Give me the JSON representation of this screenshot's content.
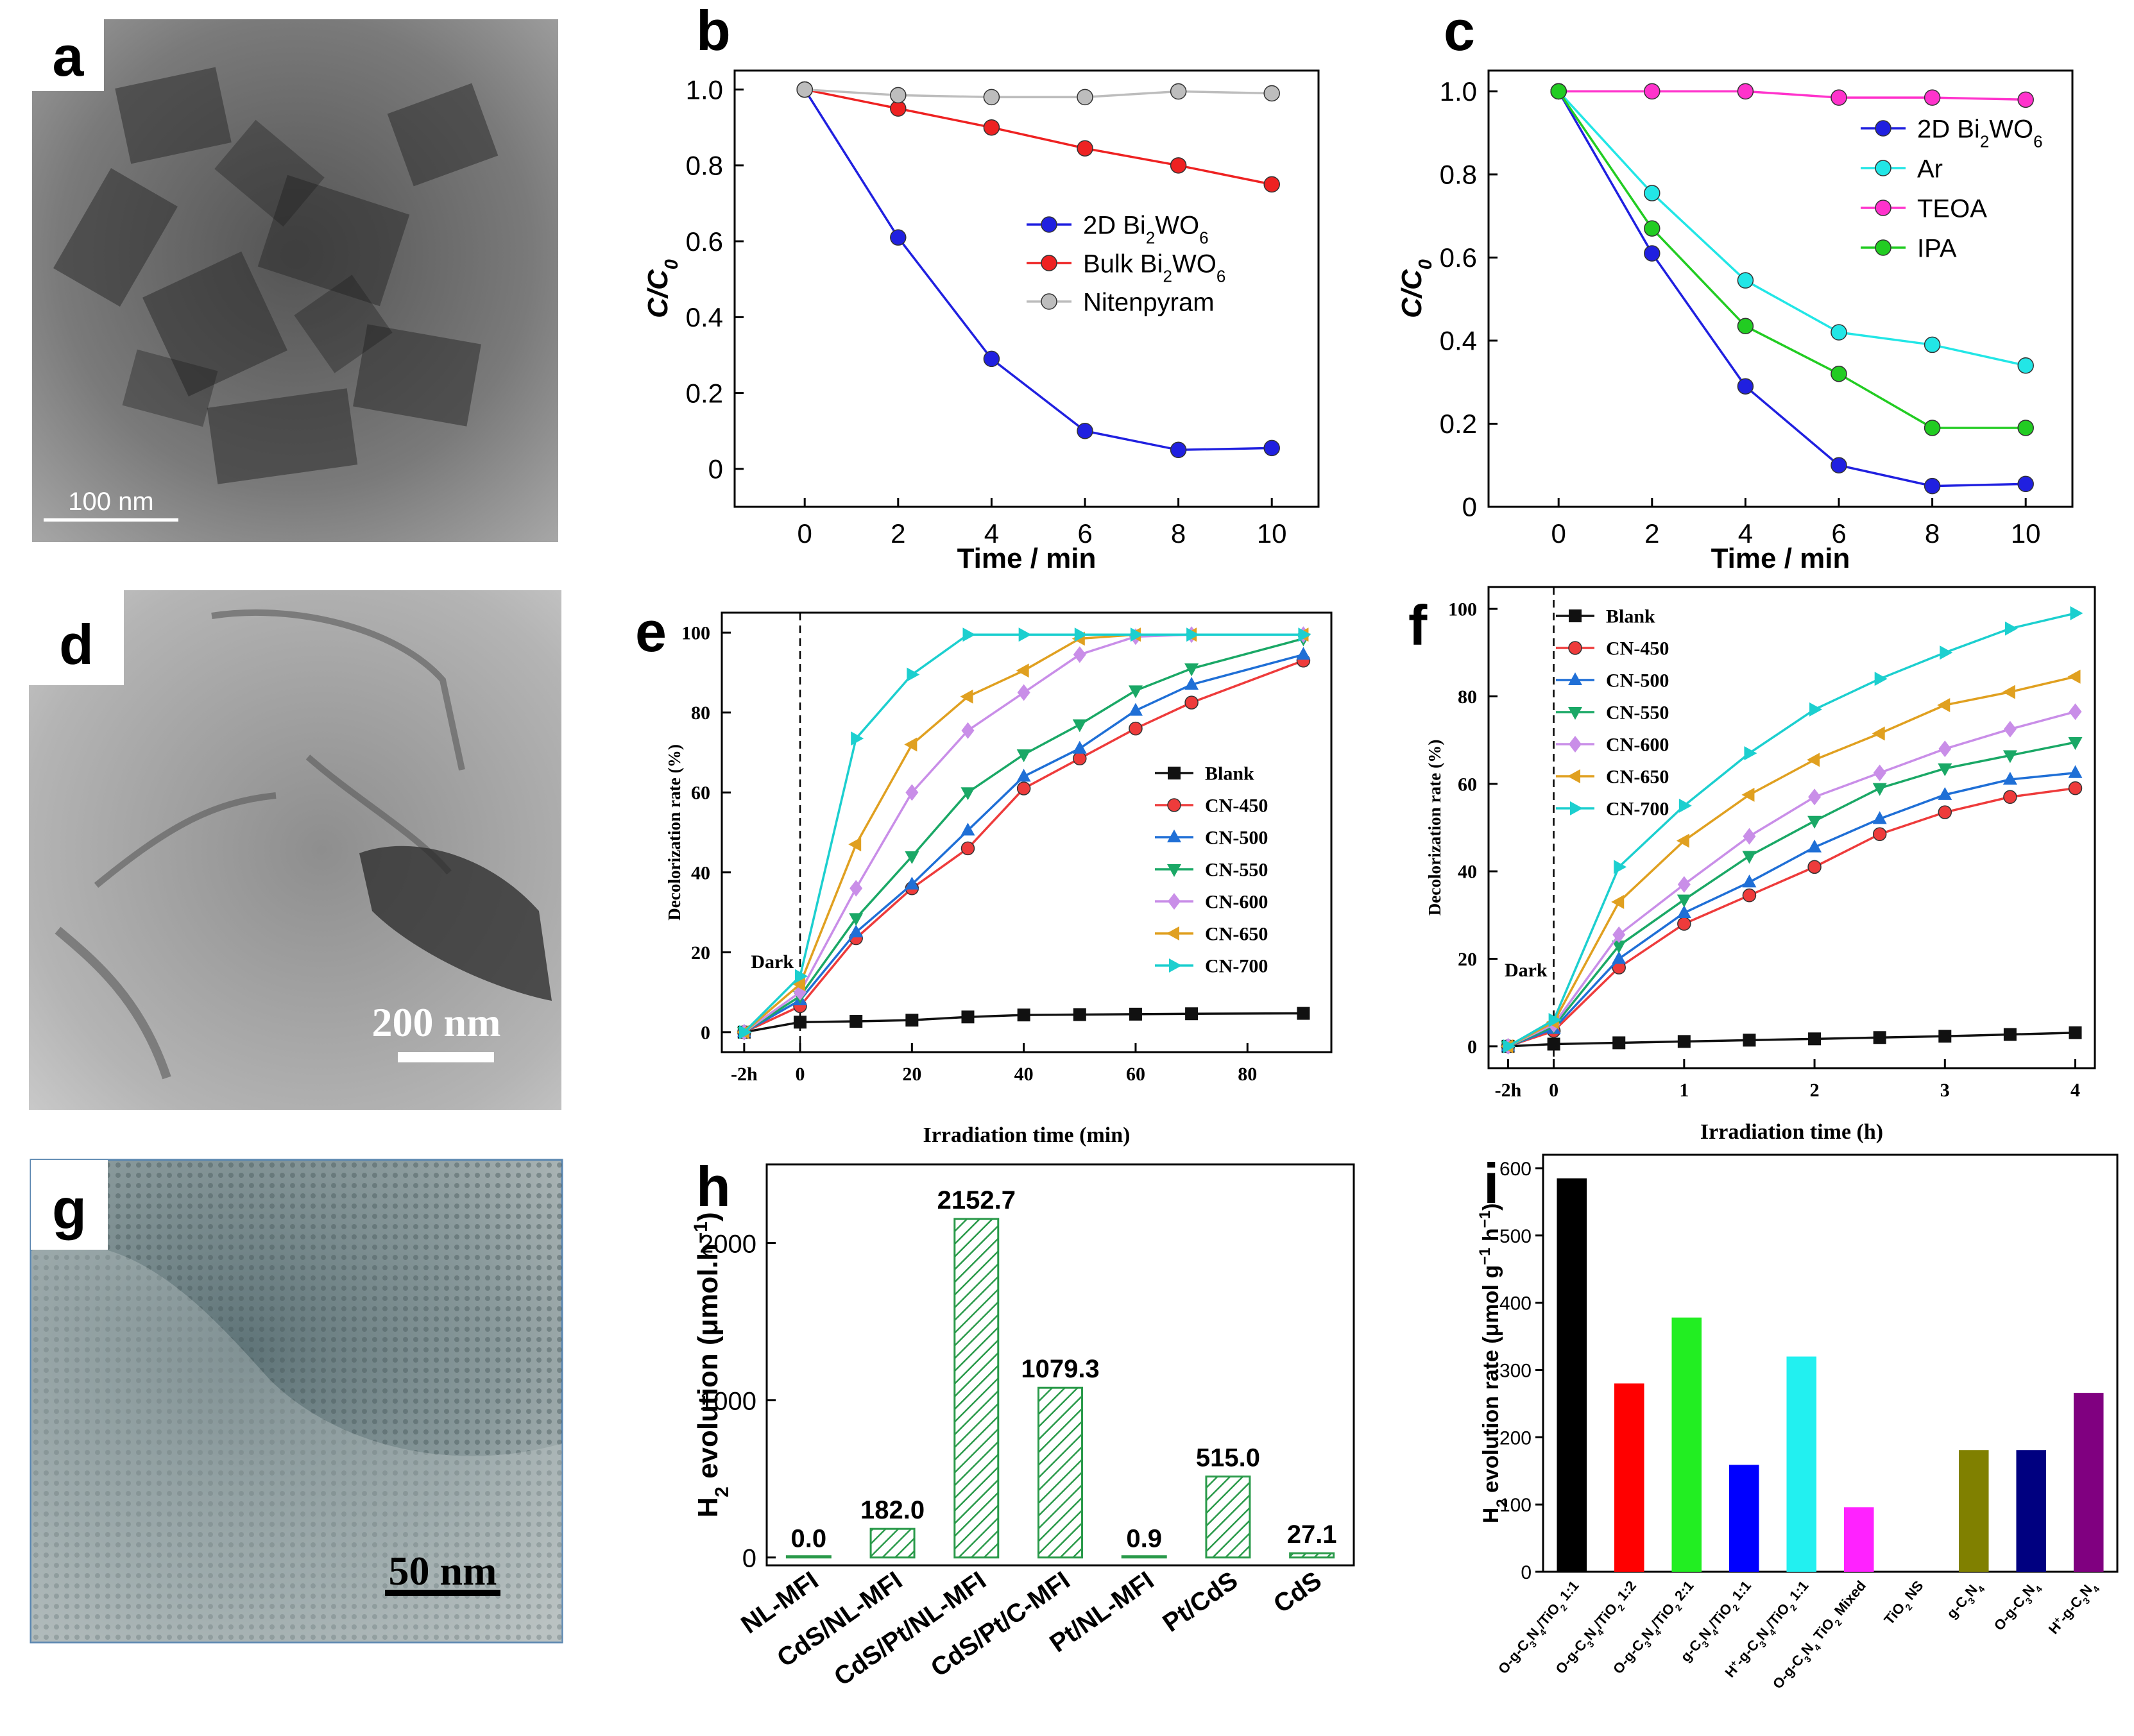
{
  "panels": {
    "a": {
      "letter": "a",
      "scalebar": "100 nm"
    },
    "d": {
      "letter": "d",
      "scalebar": "200 nm"
    },
    "g": {
      "letter": "g",
      "scalebar": "50 nm"
    },
    "b": {
      "letter": "b"
    },
    "c": {
      "letter": "c"
    },
    "e": {
      "letter": "e"
    },
    "f": {
      "letter": "f"
    },
    "h": {
      "letter": "h"
    },
    "i": {
      "letter": "i"
    }
  },
  "chart_data": [
    {
      "id": "b",
      "type": "line",
      "xlabel": "Time / min",
      "ylabel": "C/C0",
      "xlim": [
        -1.5,
        11
      ],
      "ylim": [
        -0.1,
        1.05
      ],
      "xticks": [
        0,
        2,
        4,
        6,
        8,
        10
      ],
      "yticks": [
        0,
        0.2,
        0.4,
        0.6,
        0.8,
        1.0
      ],
      "ytick_labels": [
        "0",
        "0.2",
        "0.4",
        "0.6",
        "0.8",
        "1.0"
      ],
      "legend": "center-right",
      "x": [
        0,
        2,
        4,
        6,
        8,
        10
      ],
      "series": [
        {
          "name": "2D Bi2WO6",
          "color": "#2020e0",
          "values": [
            1.0,
            0.61,
            0.29,
            0.1,
            0.05,
            0.055
          ]
        },
        {
          "name": "Bulk Bi2WO6",
          "color": "#ee2222",
          "values": [
            1.0,
            0.95,
            0.9,
            0.845,
            0.8,
            0.75
          ]
        },
        {
          "name": "Nitenpyram",
          "color": "#bdbdbd",
          "values": [
            1.0,
            0.985,
            0.98,
            0.98,
            0.995,
            0.99
          ]
        }
      ]
    },
    {
      "id": "c",
      "type": "line",
      "xlabel": "Time / min",
      "ylabel": "C/C0",
      "xlim": [
        -1.5,
        11
      ],
      "ylim": [
        0,
        1.05
      ],
      "xticks": [
        0,
        2,
        4,
        6,
        8,
        10
      ],
      "yticks": [
        0,
        0.2,
        0.4,
        0.6,
        0.8,
        1.0
      ],
      "ytick_labels": [
        "0",
        "0.2",
        "0.4",
        "0.6",
        "0.8",
        "1.0"
      ],
      "legend": "top-right",
      "x": [
        0,
        2,
        4,
        6,
        8,
        10
      ],
      "series": [
        {
          "name": "2D Bi2WO6",
          "color": "#2020e0",
          "values": [
            1.0,
            0.61,
            0.29,
            0.1,
            0.05,
            0.055
          ]
        },
        {
          "name": "Ar",
          "color": "#22e6e6",
          "values": [
            1.0,
            0.755,
            0.545,
            0.42,
            0.39,
            0.34
          ]
        },
        {
          "name": "TEOA",
          "color": "#ff33cc",
          "values": [
            1.0,
            1.0,
            1.0,
            0.985,
            0.985,
            0.98
          ]
        },
        {
          "name": "IPA",
          "color": "#22cc22",
          "values": [
            1.0,
            0.67,
            0.435,
            0.32,
            0.19,
            0.19
          ]
        }
      ]
    },
    {
      "id": "e",
      "type": "line",
      "xlabel": "Irradiation time (min)",
      "ylabel": "Decolorization rate (%)",
      "xlim": [
        -14,
        95
      ],
      "ylim": [
        -5,
        105
      ],
      "xticks": [
        -10,
        0,
        20,
        40,
        60,
        80
      ],
      "xtick_labels": [
        "-2h",
        "0",
        "20",
        "40",
        "60",
        "80"
      ],
      "yticks": [
        0,
        20,
        40,
        60,
        80,
        100
      ],
      "dark_line_x": 0,
      "annotation": "Dark",
      "legend": "center-right",
      "x": [
        -10,
        0,
        10,
        20,
        30,
        40,
        50,
        60,
        70,
        90
      ],
      "series": [
        {
          "name": "Blank",
          "color": "#111111",
          "marker": "square",
          "values": [
            0,
            2.5,
            2.7,
            3,
            3.8,
            4.3,
            4.4,
            4.5,
            4.6,
            4.7
          ]
        },
        {
          "name": "CN-450",
          "color": "#ee3b3b",
          "marker": "circle",
          "values": [
            0,
            6.5,
            23.5,
            36,
            46,
            61,
            68.5,
            76,
            82.5,
            93
          ]
        },
        {
          "name": "CN-500",
          "color": "#1f6fd6",
          "marker": "triangle-up",
          "values": [
            0,
            8,
            25,
            37,
            50.5,
            64,
            71,
            80.5,
            87,
            94.5
          ]
        },
        {
          "name": "CN-550",
          "color": "#1aa866",
          "marker": "triangle-down",
          "values": [
            0,
            9,
            28.5,
            44,
            60,
            69.5,
            77,
            85.5,
            91,
            98.5
          ]
        },
        {
          "name": "CN-600",
          "color": "#c98ee8",
          "marker": "diamond",
          "values": [
            0,
            10,
            36,
            60,
            75.5,
            85,
            94.5,
            99,
            99.5,
            99.5
          ]
        },
        {
          "name": "CN-650",
          "color": "#e0a020",
          "marker": "triangle-left",
          "values": [
            0,
            12,
            47,
            72,
            84,
            90.5,
            98.5,
            99.5,
            99.5,
            99.5
          ]
        },
        {
          "name": "CN-700",
          "color": "#1ccfcf",
          "marker": "triangle-right",
          "values": [
            0,
            14,
            73.5,
            89.5,
            99.5,
            99.5,
            99.5,
            99.5,
            99.5,
            99.5
          ]
        }
      ]
    },
    {
      "id": "f",
      "type": "line",
      "xlabel": "Irradiation time (h)",
      "ylabel": "Decolorization rate (%)",
      "xlim": [
        -0.5,
        4.15
      ],
      "ylim": [
        -5,
        105
      ],
      "xticks": [
        -0.35,
        0,
        1,
        2,
        3,
        4
      ],
      "xtick_labels": [
        "-2h",
        "0",
        "1",
        "2",
        "3",
        "4"
      ],
      "yticks": [
        0,
        20,
        40,
        60,
        80,
        100
      ],
      "dark_line_x": 0,
      "annotation": "Dark",
      "legend": "top-left",
      "x": [
        -0.35,
        0,
        0.5,
        1,
        1.5,
        2,
        2.5,
        3,
        3.5,
        4
      ],
      "series": [
        {
          "name": "Blank",
          "color": "#111111",
          "marker": "square",
          "values": [
            0,
            0.5,
            0.8,
            1.1,
            1.4,
            1.7,
            2.0,
            2.3,
            2.7,
            3.1
          ]
        },
        {
          "name": "CN-450",
          "color": "#ee3b3b",
          "marker": "circle",
          "values": [
            0,
            3.5,
            18,
            28,
            34.5,
            41,
            48.5,
            53.5,
            57,
            59
          ]
        },
        {
          "name": "CN-500",
          "color": "#1f6fd6",
          "marker": "triangle-up",
          "values": [
            0,
            4,
            20,
            30.5,
            37.5,
            45.5,
            52,
            57.5,
            61,
            62.5
          ]
        },
        {
          "name": "CN-550",
          "color": "#1aa866",
          "marker": "triangle-down",
          "values": [
            0,
            4.5,
            23,
            33.5,
            43.5,
            51.5,
            59,
            63.5,
            66.5,
            69.5
          ]
        },
        {
          "name": "CN-600",
          "color": "#c98ee8",
          "marker": "diamond",
          "values": [
            0,
            5,
            25.5,
            37,
            48,
            57,
            62.5,
            68,
            72.5,
            76.5
          ]
        },
        {
          "name": "CN-650",
          "color": "#e0a020",
          "marker": "triangle-left",
          "values": [
            0,
            5.5,
            33,
            47,
            57.5,
            65.5,
            71.5,
            78,
            81,
            84.5
          ]
        },
        {
          "name": "CN-700",
          "color": "#1ccfcf",
          "marker": "triangle-right",
          "values": [
            0,
            6,
            41,
            55,
            67,
            77,
            84,
            90,
            95.5,
            99
          ]
        }
      ]
    },
    {
      "id": "h",
      "type": "bar",
      "ylabel": "H2 evolution (μmol.h−1)",
      "ylim": [
        -50,
        2500
      ],
      "yticks": [
        0,
        1000,
        2000
      ],
      "categories": [
        "NL-MFI",
        "CdS/NL-MFI",
        "CdS/Pt/NL-MFI",
        "CdS/Pt/C-MFI",
        "Pt/NL-MFI",
        "Pt/CdS",
        "CdS"
      ],
      "values": [
        0.0,
        182.0,
        2152.7,
        1079.3,
        0.9,
        515.0,
        27.1
      ],
      "value_labels": [
        "0.0",
        "182.0",
        "2152.7",
        "1079.3",
        "0.9",
        "515.0",
        "27.1"
      ],
      "color": "#2a9a4a",
      "pattern": "hatched"
    },
    {
      "id": "i",
      "type": "bar",
      "ylabel": "H2 evolution rate (μmol g−1 h−1)",
      "ylim": [
        0,
        620
      ],
      "yticks": [
        0,
        100,
        200,
        300,
        400,
        500,
        600
      ],
      "categories": [
        "O-g-C3N4/TiO2 1:1",
        "O-g-C3N4/TiO2 1:2",
        "O-g-C3N4/TiO2 2:1",
        "g-C3N4/TiO2 1:1",
        "H+-g-C3N4/TiO2 1:1",
        "O-g-C3N4 TiO2 Mixed",
        "TiO2 NS",
        "g-C3N4",
        "O-g-C3N4",
        "H+-g-C3N4"
      ],
      "values": [
        585,
        280,
        378,
        159,
        320,
        96,
        0,
        181,
        181,
        266
      ],
      "colors": [
        "#000000",
        "#ff0000",
        "#22ee22",
        "#0000ff",
        "#22f0f0",
        "#ff22ff",
        "#ffff00",
        "#808000",
        "#000080",
        "#800080"
      ]
    }
  ]
}
